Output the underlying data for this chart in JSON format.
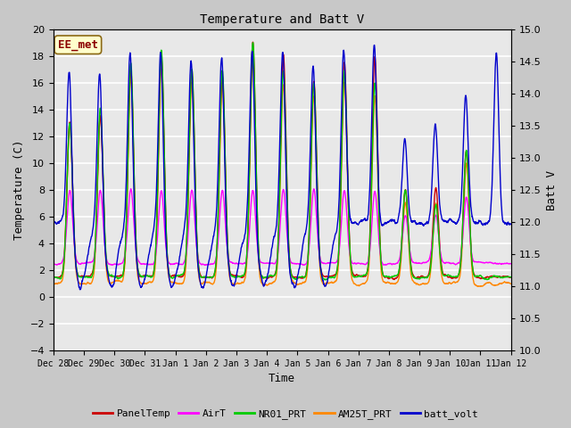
{
  "title": "Temperature and Batt V",
  "xlabel": "Time",
  "ylabel_left": "Temperature (C)",
  "ylabel_right": "Batt V",
  "annotation": "EE_met",
  "ylim_left": [
    -4,
    20
  ],
  "ylim_right": [
    10.0,
    15.0
  ],
  "yticks_left": [
    -4,
    -2,
    0,
    2,
    4,
    6,
    8,
    10,
    12,
    14,
    16,
    18,
    20
  ],
  "yticks_right": [
    10.0,
    10.5,
    11.0,
    11.5,
    12.0,
    12.5,
    13.0,
    13.5,
    14.0,
    14.5,
    15.0
  ],
  "x_tick_labels": [
    "Dec 28",
    "Dec 29",
    "Dec 30",
    "Dec 31",
    "Jan 1",
    "Jan 2",
    "Jan 3",
    "Jan 4",
    "Jan 5",
    "Jan 6",
    "Jan 7",
    "Jan 8",
    "Jan 9",
    "Jan 10",
    "Jan 11",
    "Jan 12"
  ],
  "n_days": 15,
  "fig_facecolor": "#c8c8c8",
  "plot_bg_color": "#e8e8e8",
  "series_PanelTemp_color": "#cc0000",
  "series_AirT_color": "#ff00ff",
  "series_NR01_PRT_color": "#00cc00",
  "series_AM25T_PRT_color": "#ff8800",
  "series_batt_volt_color": "#0000cc",
  "lw": 1.0
}
